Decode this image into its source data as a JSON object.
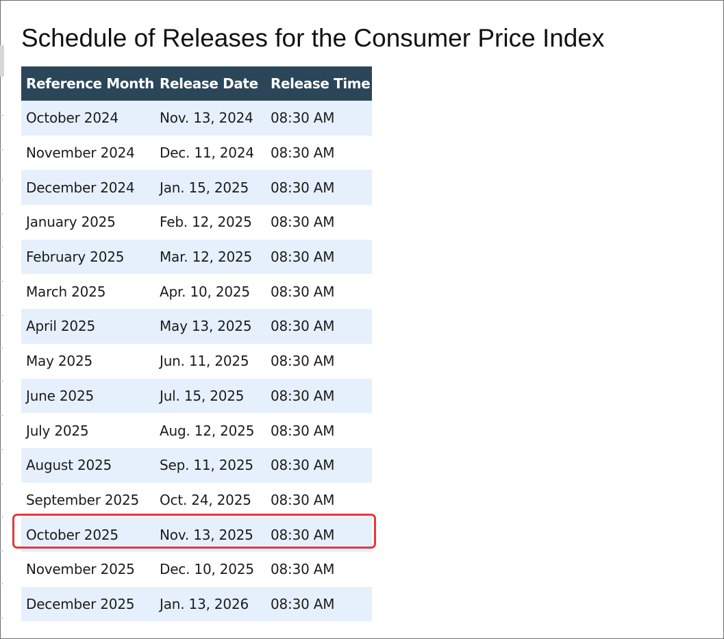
{
  "page": {
    "title": "Schedule of Releases for the Consumer Price Index"
  },
  "table": {
    "headers": [
      "Reference Month",
      "Release Date",
      "Release Time"
    ],
    "rows": [
      [
        "October 2024",
        "Nov. 13, 2024",
        "08:30 AM"
      ],
      [
        "November 2024",
        "Dec. 11, 2024",
        "08:30 AM"
      ],
      [
        "December 2024",
        "Jan. 15, 2025",
        "08:30 AM"
      ],
      [
        "January 2025",
        "Feb. 12, 2025",
        "08:30 AM"
      ],
      [
        "February 2025",
        "Mar. 12, 2025",
        "08:30 AM"
      ],
      [
        "March 2025",
        "Apr. 10, 2025",
        "08:30 AM"
      ],
      [
        "April 2025",
        "May 13, 2025",
        "08:30 AM"
      ],
      [
        "May 2025",
        "Jun. 11, 2025",
        "08:30 AM"
      ],
      [
        "June 2025",
        "Jul. 15, 2025",
        "08:30 AM"
      ],
      [
        "July 2025",
        "Aug. 12, 2025",
        "08:30 AM"
      ],
      [
        "August 2025",
        "Sep. 11, 2025",
        "08:30 AM"
      ],
      [
        "September 2025",
        "Oct. 24, 2025",
        "08:30 AM"
      ],
      [
        "October 2025",
        "Nov. 13, 2025",
        "08:30 AM"
      ],
      [
        "November 2025",
        "Dec. 10, 2025",
        "08:30 AM"
      ],
      [
        "December 2025",
        "Jan. 13, 2026",
        "08:30 AM"
      ]
    ]
  },
  "highlight": {
    "row_index": 12,
    "color": "#e8353b"
  },
  "colors": {
    "header_background": "#2b4559",
    "stripe_background": "#e6f0fc"
  }
}
